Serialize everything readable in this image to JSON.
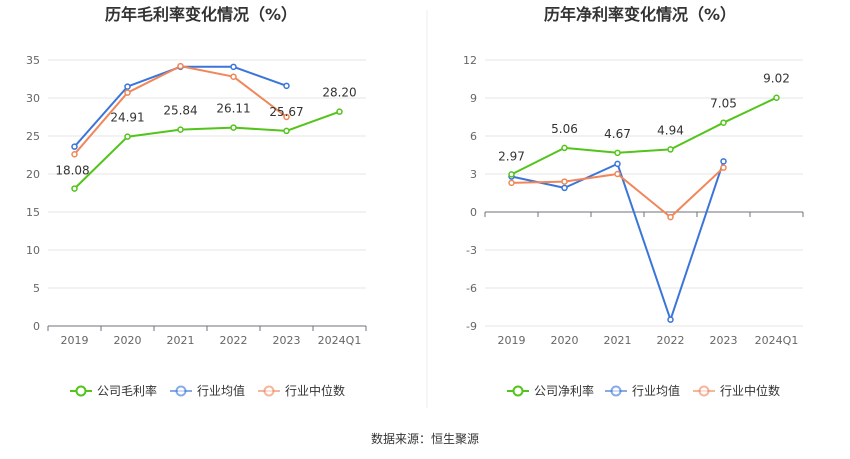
{
  "chart_data": [
    {
      "type": "line",
      "title": "历年毛利率变化情况（%）",
      "categories": [
        "2019",
        "2020",
        "2021",
        "2022",
        "2023",
        "2024Q1"
      ],
      "ylim": [
        0,
        35
      ],
      "yticks": [
        0,
        5,
        10,
        15,
        20,
        25,
        30,
        35
      ],
      "series": [
        {
          "name": "公司毛利率",
          "color": "#52c41a",
          "values": [
            18.08,
            24.91,
            25.84,
            26.11,
            25.67,
            28.2
          ],
          "labels": [
            "18.08",
            "24.91",
            "25.84",
            "26.11",
            "25.67",
            "28.20"
          ]
        },
        {
          "name": "行业均值",
          "color": "#3a75d9",
          "values": [
            23.6,
            31.5,
            34.1,
            34.1,
            31.6,
            null
          ]
        },
        {
          "name": "行业中位数",
          "color": "#f08659",
          "values": [
            22.6,
            30.7,
            34.2,
            32.8,
            27.5,
            null
          ]
        }
      ]
    },
    {
      "type": "line",
      "title": "历年净利率变化情况（%）",
      "categories": [
        "2019",
        "2020",
        "2021",
        "2022",
        "2023",
        "2024Q1"
      ],
      "ylim": [
        -9,
        12
      ],
      "yticks": [
        -9,
        -6,
        -3,
        0,
        3,
        6,
        9,
        12
      ],
      "series": [
        {
          "name": "公司净利率",
          "color": "#52c41a",
          "values": [
            2.97,
            5.06,
            4.67,
            4.94,
            7.05,
            9.02
          ],
          "labels": [
            "2.97",
            "5.06",
            "4.67",
            "4.94",
            "7.05",
            "9.02"
          ]
        },
        {
          "name": "行业均值",
          "color": "#3a75d9",
          "values": [
            2.8,
            1.9,
            3.8,
            -8.5,
            4.0,
            null
          ]
        },
        {
          "name": "行业中位数",
          "color": "#f08659",
          "values": [
            2.3,
            2.4,
            3.0,
            -0.4,
            3.5,
            null
          ]
        }
      ]
    }
  ],
  "footer": {
    "source": "数据来源：恒生聚源"
  }
}
